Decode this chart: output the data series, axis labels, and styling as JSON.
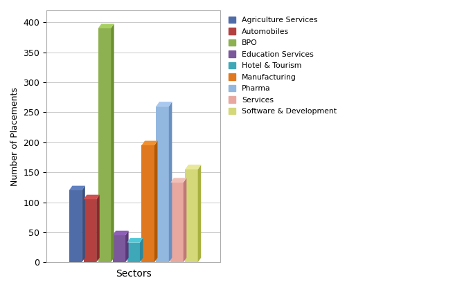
{
  "xlabel": "Sectors",
  "ylabel": "Number of Placements",
  "categories": [
    "Agriculture Services",
    "Automobiles",
    "BPO",
    "Education Services",
    "Hotel & Tourism",
    "Manufacturing",
    "Pharma",
    "Services",
    "Software & Development"
  ],
  "values": [
    120,
    105,
    390,
    45,
    33,
    195,
    260,
    133,
    155
  ],
  "front_colors": [
    "#4F6CA8",
    "#B54040",
    "#8DB050",
    "#7B579B",
    "#3EA8B8",
    "#E07820",
    "#92B8E0",
    "#E8A8A0",
    "#D4D878"
  ],
  "side_colors": [
    "#3A5080",
    "#8C2828",
    "#6A9030",
    "#5C3878",
    "#2888A0",
    "#B05A08",
    "#6A90C0",
    "#C07878",
    "#A8B040"
  ],
  "top_colors": [
    "#6080C0",
    "#D05050",
    "#A8D060",
    "#9060B8",
    "#50C8D8",
    "#F09030",
    "#A8C8F0",
    "#F0C0B8",
    "#E8E898"
  ],
  "ylim": [
    0,
    420
  ],
  "yticks": [
    0,
    50,
    100,
    150,
    200,
    250,
    300,
    350,
    400
  ],
  "depth": 8,
  "bar_width": 0.055,
  "background_color": "#FFFFFF",
  "grid_color": "#C0C0C0",
  "spine_color": "#AAAAAA"
}
